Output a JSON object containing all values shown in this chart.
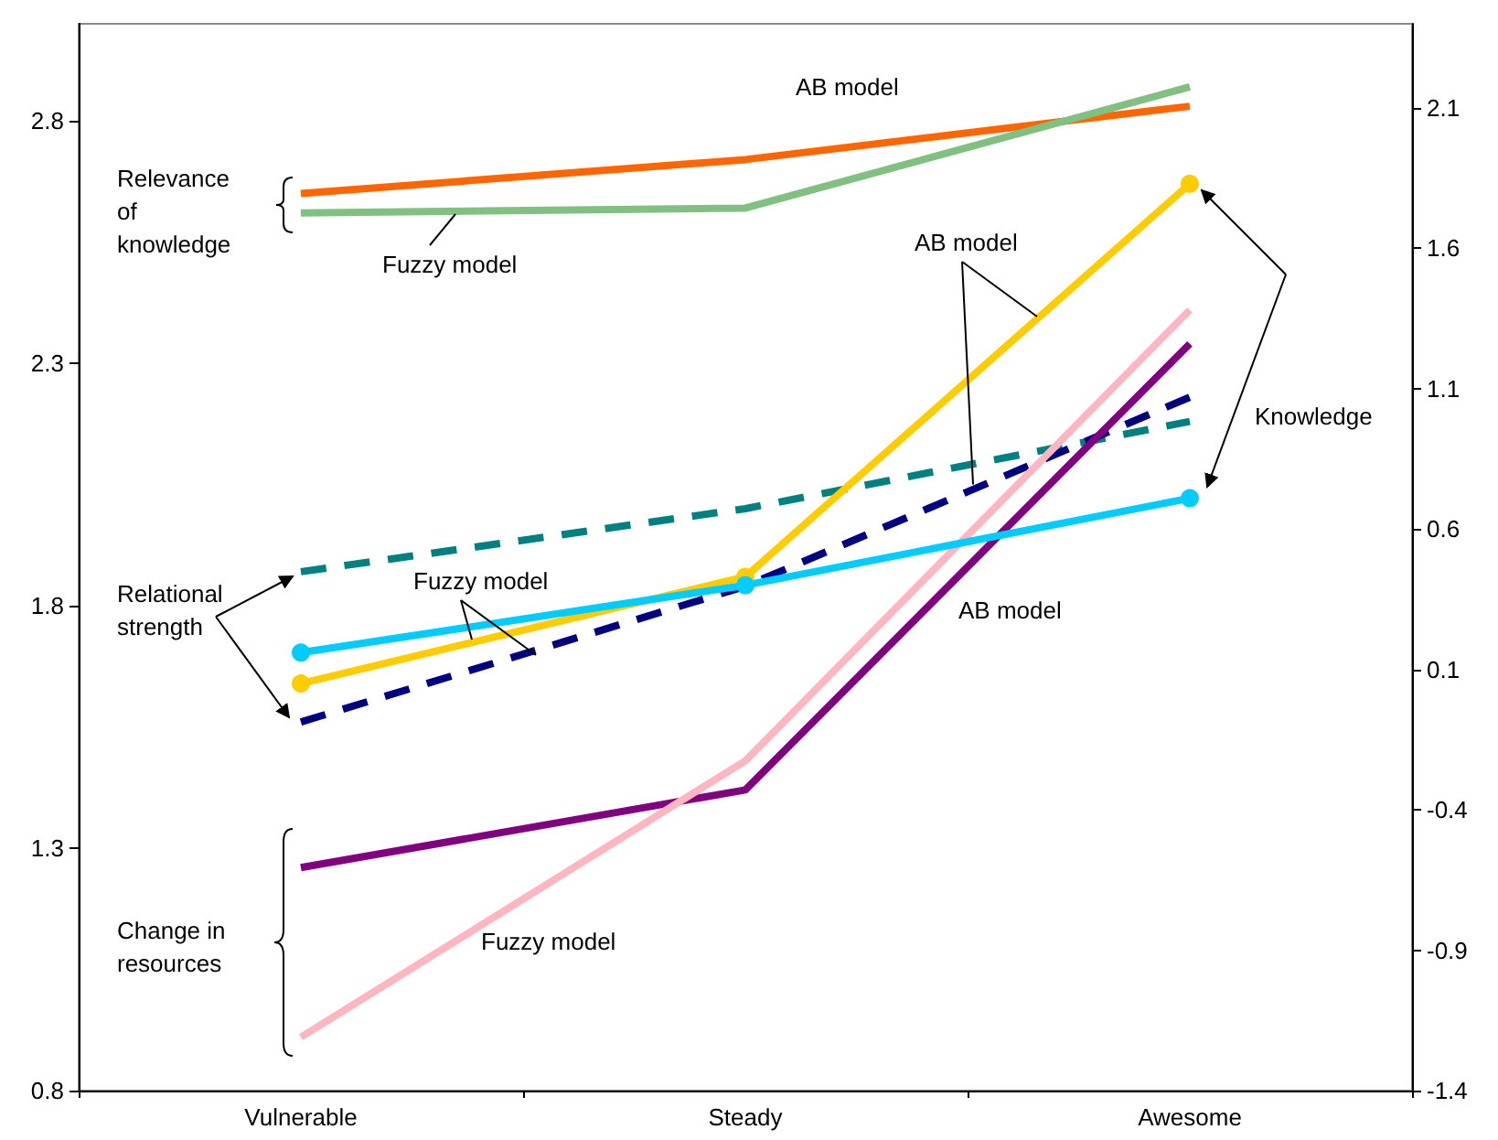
{
  "chart_data": {
    "type": "line",
    "categories": [
      "Vulnerable",
      "Steady",
      "Awesome"
    ],
    "ylim": [
      0.8,
      3.0
    ],
    "yticks": [
      0.8,
      1.3,
      1.8,
      2.3,
      2.8
    ],
    "y2lim": [
      -1.4,
      2.4
    ],
    "y2ticks": [
      -1.4,
      -0.9,
      -0.4,
      0.1,
      0.6,
      1.1,
      1.6,
      2.1
    ],
    "grid": false,
    "marker": "none",
    "series": [
      {
        "color": "#ff6600",
        "values": [
          2.65,
          2.72,
          2.83
        ],
        "line_style": "solid"
      },
      {
        "color": "#80c080",
        "values": [
          2.61,
          2.62,
          2.87
        ],
        "line_style": "solid"
      },
      {
        "color": "#008080",
        "values": [
          1.87,
          2.0,
          2.18
        ],
        "line_style": "dashed"
      },
      {
        "color": "#000080",
        "values": [
          1.56,
          1.84,
          2.23
        ],
        "line_style": "dashed"
      },
      {
        "color": "#800080",
        "values": [
          1.26,
          1.42,
          2.34
        ],
        "line_style": "solid"
      },
      {
        "color": "#ffb6c1",
        "values": [
          0.91,
          1.48,
          2.41
        ],
        "line_style": "solid"
      },
      {
        "color": "#ffcc00",
        "values": [
          0.05,
          0.43,
          1.83
        ],
        "axis": "y2",
        "marker": "circle",
        "line_style": "solid"
      },
      {
        "color": "#00ccff",
        "values": [
          0.16,
          0.4,
          0.71
        ],
        "axis": "y2",
        "marker": "circle",
        "line_style": "solid"
      }
    ],
    "annotations": [
      "AB model",
      "Relevance of knowledge",
      "Fuzzy model",
      {
        "text": "AB model",
        "y": 2.05
      },
      "Knowledge",
      "Relational strength",
      {
        "text": "Fuzzy model",
        "y": 1.73
      },
      "AB model",
      "Change in resources",
      "Fuzzy model"
    ]
  }
}
